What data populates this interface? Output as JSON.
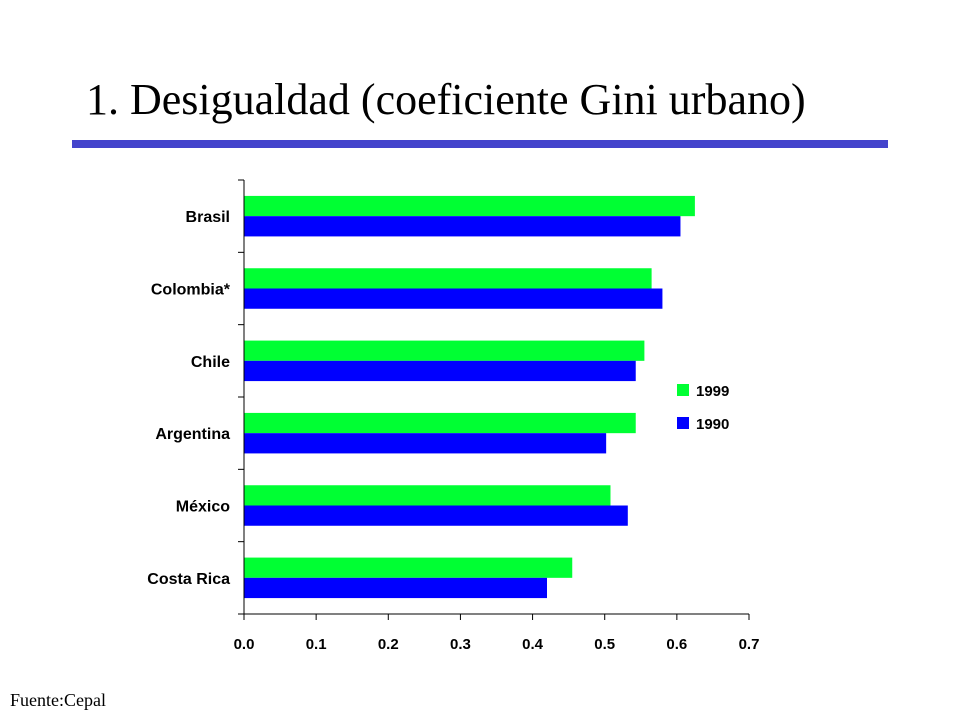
{
  "slide": {
    "title": "1. Desigualdad (coeficiente Gini urbano)",
    "source": "Fuente:Cepal",
    "rule_color": "#4444cc"
  },
  "chart_data": {
    "type": "bar",
    "orientation": "horizontal",
    "categories": [
      "Brasil",
      "Colombia*",
      "Chile",
      "Argentina",
      "México",
      "Costa Rica"
    ],
    "series": [
      {
        "name": "1999",
        "color": "#00ff33",
        "values": [
          0.625,
          0.565,
          0.555,
          0.543,
          0.508,
          0.455
        ]
      },
      {
        "name": "1990",
        "color": "#0000ff",
        "values": [
          0.605,
          0.58,
          0.543,
          0.502,
          0.532,
          0.42
        ]
      }
    ],
    "xlim": [
      0,
      0.7
    ],
    "xticks": [
      "0.0",
      "0.1",
      "0.2",
      "0.3",
      "0.4",
      "0.5",
      "0.6",
      "0.7"
    ],
    "grid": false,
    "legend_position": "right"
  }
}
